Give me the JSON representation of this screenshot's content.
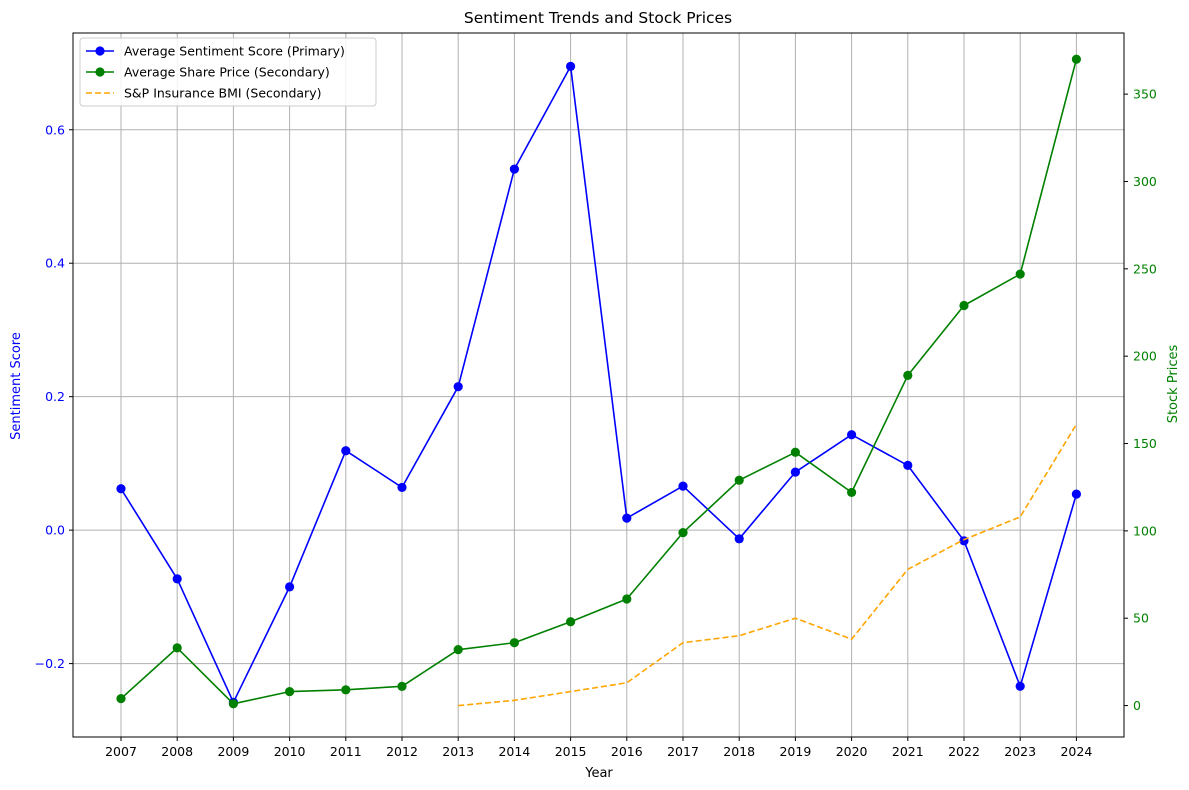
{
  "chart_data": {
    "type": "line",
    "title": "Sentiment Trends and Stock Prices",
    "xlabel": "Year",
    "ylabel": "Sentiment Score",
    "ylabel_secondary": "Stock Prices",
    "categories": [
      "2007",
      "2008",
      "2009",
      "2010",
      "2011",
      "2012",
      "2013",
      "2014",
      "2015",
      "2016",
      "2017",
      "2018",
      "2019",
      "2020",
      "2021",
      "2022",
      "2023",
      "2024"
    ],
    "ylim": [
      -0.31,
      0.745
    ],
    "ylim_secondary": [
      -18,
      385
    ],
    "yticks": [
      -0.2,
      0.0,
      0.2,
      0.4,
      0.6
    ],
    "ytick_labels": [
      "−0.2",
      "0.0",
      "0.2",
      "0.4",
      "0.6"
    ],
    "yticks_secondary": [
      0,
      50,
      100,
      150,
      200,
      250,
      300,
      350
    ],
    "ytick_labels_secondary": [
      "0",
      "50",
      "100",
      "150",
      "200",
      "250",
      "300",
      "350"
    ],
    "grid": true,
    "legend_position": "top-left",
    "series": [
      {
        "name": "Average Sentiment Score (Primary)",
        "axis": "primary",
        "color": "#0000ff",
        "style": "solid",
        "marker": "circle",
        "values": [
          0.062,
          -0.073,
          -0.258,
          -0.085,
          0.119,
          0.064,
          0.215,
          0.541,
          0.695,
          0.018,
          0.066,
          -0.013,
          0.087,
          0.143,
          0.097,
          -0.016,
          -0.234,
          0.054
        ]
      },
      {
        "name": "Average Share Price (Secondary)",
        "axis": "secondary",
        "color": "#008000",
        "style": "solid",
        "marker": "circle",
        "values": [
          4,
          33,
          1,
          8,
          9,
          11,
          32,
          36,
          48,
          61,
          99,
          129,
          145,
          122,
          189,
          229,
          247,
          370
        ]
      },
      {
        "name": "S&P Insurance BMI (Secondary)",
        "axis": "secondary",
        "color": "#ffa500",
        "style": "dashed",
        "marker": "none",
        "values": [
          null,
          null,
          null,
          null,
          null,
          null,
          0,
          3,
          8,
          13,
          36,
          40,
          50,
          38,
          78,
          95,
          108,
          161
        ]
      }
    ]
  }
}
